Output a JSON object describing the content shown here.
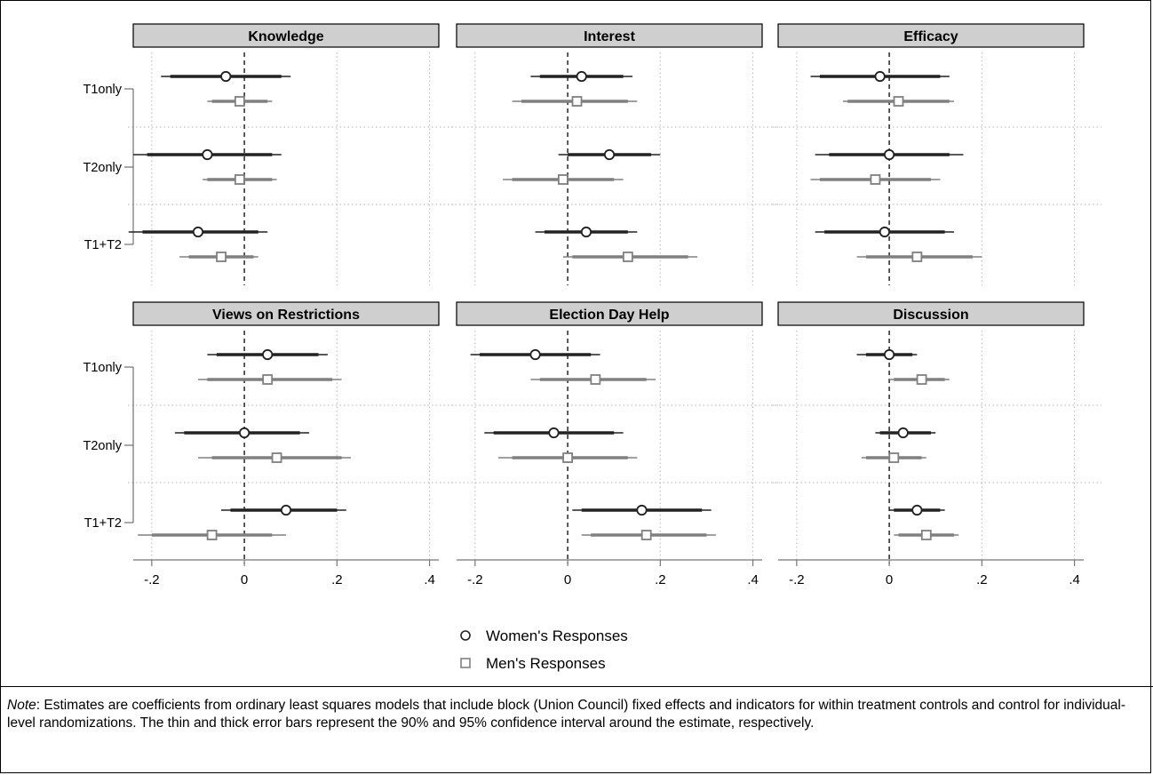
{
  "chart_data": {
    "type": "coefficient-plot",
    "x_ticks": [
      -0.2,
      0,
      0.2,
      0.4
    ],
    "x_tick_labels": [
      "-.2",
      "0",
      ".2",
      ".4"
    ],
    "xlim": [
      -0.24,
      0.42
    ],
    "rows": [
      "T1only",
      "T2only",
      "T1+T2"
    ],
    "series": [
      {
        "name": "Women's Responses",
        "marker": "circle",
        "color": "#222222"
      },
      {
        "name": "Men's Responses",
        "marker": "square",
        "color": "#808080"
      }
    ],
    "panels": [
      {
        "title": "Knowledge",
        "points": [
          {
            "row": "T1only",
            "series": "Women's Responses",
            "est": -0.04,
            "ci95": [
              -0.18,
              0.1
            ],
            "ci90": [
              -0.16,
              0.08
            ]
          },
          {
            "row": "T1only",
            "series": "Men's Responses",
            "est": -0.01,
            "ci95": [
              -0.08,
              0.06
            ],
            "ci90": [
              -0.07,
              0.05
            ]
          },
          {
            "row": "T2only",
            "series": "Women's Responses",
            "est": -0.08,
            "ci95": [
              -0.24,
              0.08
            ],
            "ci90": [
              -0.21,
              0.06
            ]
          },
          {
            "row": "T2only",
            "series": "Men's Responses",
            "est": -0.01,
            "ci95": [
              -0.09,
              0.07
            ],
            "ci90": [
              -0.08,
              0.06
            ]
          },
          {
            "row": "T1+T2",
            "series": "Women's Responses",
            "est": -0.1,
            "ci95": [
              -0.25,
              0.05
            ],
            "ci90": [
              -0.22,
              0.03
            ]
          },
          {
            "row": "T1+T2",
            "series": "Men's Responses",
            "est": -0.05,
            "ci95": [
              -0.14,
              0.03
            ],
            "ci90": [
              -0.12,
              0.02
            ]
          }
        ]
      },
      {
        "title": "Interest",
        "points": [
          {
            "row": "T1only",
            "series": "Women's Responses",
            "est": 0.03,
            "ci95": [
              -0.08,
              0.14
            ],
            "ci90": [
              -0.06,
              0.12
            ]
          },
          {
            "row": "T1only",
            "series": "Men's Responses",
            "est": 0.02,
            "ci95": [
              -0.12,
              0.15
            ],
            "ci90": [
              -0.1,
              0.13
            ]
          },
          {
            "row": "T2only",
            "series": "Women's Responses",
            "est": 0.09,
            "ci95": [
              -0.02,
              0.2
            ],
            "ci90": [
              0.0,
              0.18
            ]
          },
          {
            "row": "T2only",
            "series": "Men's Responses",
            "est": -0.01,
            "ci95": [
              -0.14,
              0.12
            ],
            "ci90": [
              -0.12,
              0.1
            ]
          },
          {
            "row": "T1+T2",
            "series": "Women's Responses",
            "est": 0.04,
            "ci95": [
              -0.07,
              0.15
            ],
            "ci90": [
              -0.05,
              0.13
            ]
          },
          {
            "row": "T1+T2",
            "series": "Men's Responses",
            "est": 0.13,
            "ci95": [
              -0.01,
              0.28
            ],
            "ci90": [
              0.01,
              0.26
            ]
          }
        ]
      },
      {
        "title": "Efficacy",
        "points": [
          {
            "row": "T1only",
            "series": "Women's Responses",
            "est": -0.02,
            "ci95": [
              -0.17,
              0.13
            ],
            "ci90": [
              -0.15,
              0.11
            ]
          },
          {
            "row": "T1only",
            "series": "Men's Responses",
            "est": 0.02,
            "ci95": [
              -0.1,
              0.14
            ],
            "ci90": [
              -0.09,
              0.13
            ]
          },
          {
            "row": "T2only",
            "series": "Women's Responses",
            "est": 0.0,
            "ci95": [
              -0.16,
              0.16
            ],
            "ci90": [
              -0.13,
              0.13
            ]
          },
          {
            "row": "T2only",
            "series": "Men's Responses",
            "est": -0.03,
            "ci95": [
              -0.17,
              0.11
            ],
            "ci90": [
              -0.15,
              0.09
            ]
          },
          {
            "row": "T1+T2",
            "series": "Women's Responses",
            "est": -0.01,
            "ci95": [
              -0.16,
              0.14
            ],
            "ci90": [
              -0.14,
              0.12
            ]
          },
          {
            "row": "T1+T2",
            "series": "Men's Responses",
            "est": 0.06,
            "ci95": [
              -0.07,
              0.2
            ],
            "ci90": [
              -0.05,
              0.18
            ]
          }
        ]
      },
      {
        "title": "Views on Restrictions",
        "points": [
          {
            "row": "T1only",
            "series": "Women's Responses",
            "est": 0.05,
            "ci95": [
              -0.08,
              0.18
            ],
            "ci90": [
              -0.06,
              0.16
            ]
          },
          {
            "row": "T1only",
            "series": "Men's Responses",
            "est": 0.05,
            "ci95": [
              -0.1,
              0.21
            ],
            "ci90": [
              -0.08,
              0.19
            ]
          },
          {
            "row": "T2only",
            "series": "Women's Responses",
            "est": 0.0,
            "ci95": [
              -0.15,
              0.14
            ],
            "ci90": [
              -0.13,
              0.12
            ]
          },
          {
            "row": "T2only",
            "series": "Men's Responses",
            "est": 0.07,
            "ci95": [
              -0.1,
              0.23
            ],
            "ci90": [
              -0.07,
              0.21
            ]
          },
          {
            "row": "T1+T2",
            "series": "Women's Responses",
            "est": 0.09,
            "ci95": [
              -0.05,
              0.22
            ],
            "ci90": [
              -0.03,
              0.2
            ]
          },
          {
            "row": "T1+T2",
            "series": "Men's Responses",
            "est": -0.07,
            "ci95": [
              -0.23,
              0.09
            ],
            "ci90": [
              -0.2,
              0.06
            ]
          }
        ]
      },
      {
        "title": "Election Day Help",
        "points": [
          {
            "row": "T1only",
            "series": "Women's Responses",
            "est": -0.07,
            "ci95": [
              -0.21,
              0.07
            ],
            "ci90": [
              -0.19,
              0.05
            ]
          },
          {
            "row": "T1only",
            "series": "Men's Responses",
            "est": 0.06,
            "ci95": [
              -0.08,
              0.19
            ],
            "ci90": [
              -0.06,
              0.17
            ]
          },
          {
            "row": "T2only",
            "series": "Women's Responses",
            "est": -0.03,
            "ci95": [
              -0.18,
              0.12
            ],
            "ci90": [
              -0.16,
              0.1
            ]
          },
          {
            "row": "T2only",
            "series": "Men's Responses",
            "est": 0.0,
            "ci95": [
              -0.15,
              0.15
            ],
            "ci90": [
              -0.12,
              0.13
            ]
          },
          {
            "row": "T1+T2",
            "series": "Women's Responses",
            "est": 0.16,
            "ci95": [
              0.01,
              0.31
            ],
            "ci90": [
              0.03,
              0.29
            ]
          },
          {
            "row": "T1+T2",
            "series": "Men's Responses",
            "est": 0.17,
            "ci95": [
              0.03,
              0.32
            ],
            "ci90": [
              0.05,
              0.3
            ]
          }
        ]
      },
      {
        "title": "Discussion",
        "points": [
          {
            "row": "T1only",
            "series": "Women's Responses",
            "est": 0.0,
            "ci95": [
              -0.07,
              0.06
            ],
            "ci90": [
              -0.05,
              0.05
            ]
          },
          {
            "row": "T1only",
            "series": "Men's Responses",
            "est": 0.07,
            "ci95": [
              0.0,
              0.13
            ],
            "ci90": [
              0.01,
              0.12
            ]
          },
          {
            "row": "T2only",
            "series": "Women's Responses",
            "est": 0.03,
            "ci95": [
              -0.03,
              0.1
            ],
            "ci90": [
              -0.02,
              0.09
            ]
          },
          {
            "row": "T2only",
            "series": "Men's Responses",
            "est": 0.01,
            "ci95": [
              -0.06,
              0.08
            ],
            "ci90": [
              -0.05,
              0.07
            ]
          },
          {
            "row": "T1+T2",
            "series": "Women's Responses",
            "est": 0.06,
            "ci95": [
              0.0,
              0.12
            ],
            "ci90": [
              0.01,
              0.11
            ]
          },
          {
            "row": "T1+T2",
            "series": "Men's Responses",
            "est": 0.08,
            "ci95": [
              0.01,
              0.15
            ],
            "ci90": [
              0.02,
              0.14
            ]
          }
        ]
      }
    ],
    "legend": {
      "placement": "bottom-center",
      "items": [
        "Women's Responses",
        "Men's Responses"
      ]
    },
    "grid": true,
    "reference_line": 0
  },
  "note": {
    "label": "Note",
    "text": ": Estimates are coefficients from ordinary least squares models that include block (Union Council) fixed effects and indicators for within treatment controls and control for individual-level randomizations. The thin and thick error bars represent the 90% and 95% confidence interval around the estimate, respectively."
  }
}
